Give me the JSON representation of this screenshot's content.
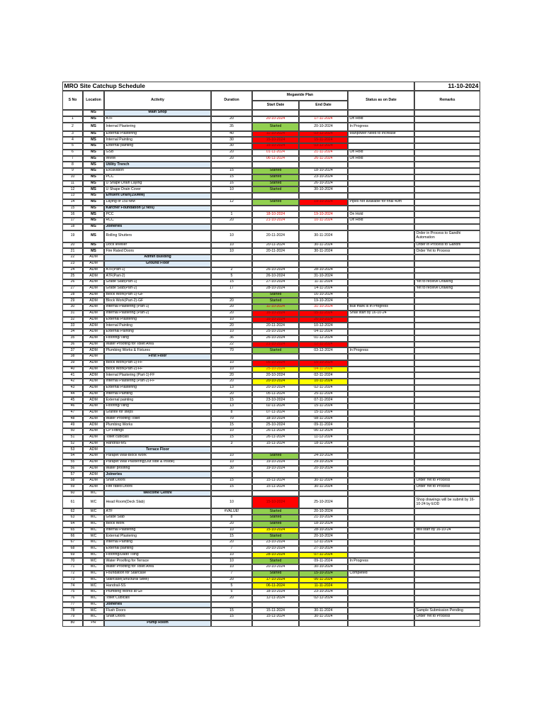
{
  "header": {
    "title": "MRO Site Catchup Schedule",
    "date": "11-10-2024"
  },
  "columns": {
    "sno": "S No",
    "location": "Location",
    "activity": "Activity",
    "duration": "Duration",
    "plan": "Megawide Plan",
    "start": "Start Date",
    "end": "End Date",
    "status": "Status as on Date",
    "remarks": "Remarks"
  },
  "rows": [
    {
      "location": "MS",
      "group": "Main Shop"
    },
    {
      "sno": 1,
      "location": "MS",
      "activity": "ATF",
      "duration": 20,
      "start": "20-10-2024",
      "end": "17-11-2024",
      "red_text": true,
      "status": "On Hold"
    },
    {
      "sno": 2,
      "location": "MS",
      "activity": "Internal Plastering",
      "duration": 35,
      "start": "Started",
      "start_fill": "#92d050",
      "end": "20-10-2024",
      "status": "In Progress"
    },
    {
      "sno": 3,
      "location": "MS",
      "activity": "External Plastering",
      "duration": 40,
      "start": "11-10-2024",
      "start_fill": "#ff0000",
      "end": "03-12-2024",
      "end_fill": "#ff0000",
      "status": "Manpower Need to Increase"
    },
    {
      "sno": 4,
      "location": "MS",
      "activity": "Internal Painting",
      "duration": 30,
      "start": "15-10-2024",
      "start_fill": "#ff0000",
      "end": "15-11-2024",
      "end_fill": "#ff0000"
    },
    {
      "sno": 5,
      "location": "MS",
      "activity": "External painting",
      "duration": 30,
      "start": "15-10-2024",
      "start_fill": "#ff0000",
      "end": "03-12-2024",
      "end_fill": "#ff0000"
    },
    {
      "sno": 6,
      "location": "MS",
      "activity": "GSB",
      "duration": 20,
      "start": "01-11-2024",
      "end": "21-11-2024",
      "red_text": true,
      "status": "On Hold"
    },
    {
      "sno": 7,
      "location": "MS",
      "activity": "WMM",
      "duration": 20,
      "start": "06-11-2024",
      "end": "26-11-2024",
      "red_text": true,
      "status": "On Hold"
    },
    {
      "sno": 8,
      "location": "MS",
      "subgroup": "Utility Trench"
    },
    {
      "sno": 9,
      "location": "MS",
      "activity": "Excavation",
      "duration": 15,
      "start": "Started",
      "start_fill": "#92d050",
      "end": "18-10-2024"
    },
    {
      "sno": 10,
      "location": "MS",
      "activity": "PCC",
      "duration": 15,
      "start": "Started",
      "start_fill": "#92d050",
      "end": "23-10-2024"
    },
    {
      "sno": 11,
      "location": "MS",
      "activity": "U Shape Drain Laying",
      "duration": 16,
      "start": "Started",
      "start_fill": "#92d050",
      "end": "26-10-2024"
    },
    {
      "sno": 12,
      "location": "MS",
      "activity": "U Shape Drain Cover",
      "duration": 10,
      "start": "Started",
      "start_fill": "#92d050",
      "end": "30-10-2024"
    },
    {
      "sno": 13,
      "location": "MS",
      "subgroup": "Effluent Drain(150MM)"
    },
    {
      "sno": 14,
      "location": "MS",
      "activity": "Laying of 150 MM",
      "duration": 12,
      "start": "Started",
      "start_fill": "#92d050",
      "end": "19-10-2024",
      "end_fill": "#ff0000",
      "status": "Pipes not available for final 40m"
    },
    {
      "sno": 15,
      "location": "MS",
      "subgroup": "Karcher Foundation (2 Nos)"
    },
    {
      "sno": 16,
      "location": "MS",
      "activity": "PCC",
      "duration": 1,
      "start": "18-10-2024",
      "end": "19-10-2024",
      "red_text": true,
      "status": "On Hold"
    },
    {
      "sno": 17,
      "location": "MS",
      "activity": "RCC",
      "duration": 20,
      "start": "21-10-2024",
      "end": "10-11-2024",
      "red_text": true,
      "status": "On Hold"
    },
    {
      "sno": 18,
      "location": "MS",
      "subgroup": "Joineries"
    },
    {
      "sno": 19,
      "location": "MS",
      "activity": "Rolling Shutters",
      "duration": 10,
      "start": "20-11-2024",
      "end": "30-11-2024",
      "remarks": "Order in Process to Gandhi Automation"
    },
    {
      "sno": 20,
      "location": "MS",
      "activity": "Dock leveller",
      "duration": 10,
      "start": "20-11-2024",
      "end": "30-11-2024",
      "remarks": "Order in Process to Gandhi"
    },
    {
      "sno": 21,
      "location": "MS",
      "activity": "Fire Rated Doors",
      "duration": 10,
      "start": "20-11-2024",
      "end": "30-11-2024",
      "remarks": "Order Yet to Process"
    },
    {
      "sno": 22,
      "location": "ADM",
      "group": "Admin Building"
    },
    {
      "sno": 23,
      "location": "ADM",
      "group": "Ground Floor"
    },
    {
      "sno": 24,
      "location": "ADM",
      "activity": "ATF(Part-1)",
      "duration": 2,
      "start": "26-10-2024",
      "end": "28-10-2024"
    },
    {
      "sno": 25,
      "location": "ADM",
      "activity": "ATF(Part-2)",
      "duration": 5,
      "start": "26-10-2024",
      "end": "31-10-2024"
    },
    {
      "sno": 26,
      "location": "ADM",
      "activity": "Grade Slab(Part-1)",
      "duration": 15,
      "start": "27-10-2024",
      "end": "11-11-2024",
      "remarks": "Yet to receive Drawing"
    },
    {
      "sno": 27,
      "location": "ADM",
      "activity": "Grade Slab(Part-2)",
      "duration": 17,
      "start": "28-10-2024",
      "end": "14-11-2024",
      "remarks": "Yet to receive Drawing"
    },
    {
      "sno": 28,
      "location": "ADM",
      "activity": "Block Work(Part-1)-GF",
      "start": "Started",
      "start_fill": "#92d050",
      "end": "16-10-2024"
    },
    {
      "sno": 29,
      "location": "ADM",
      "activity": "Block Work(Part-2)-GF",
      "duration": 20,
      "start": "Started",
      "start_fill": "#92d050",
      "end": "19-10-2024"
    },
    {
      "sno": 30,
      "location": "ADM",
      "activity": "Internal Plastering (Part-1)",
      "duration": 20,
      "start": "11-10-2024",
      "start_fill": "#92d050",
      "red_text": true,
      "end": "31-10-2024",
      "status": "Bull mark is in Progress"
    },
    {
      "sno": 31,
      "location": "ADM",
      "activity": "Internal Plastering (Part-2)",
      "duration": 20,
      "start": "16-10-2024",
      "start_fill": "#ff0000",
      "end": "05-11-2024",
      "end_fill": "#ff0000",
      "status": "Shall start by 16-10-24"
    },
    {
      "sno": 32,
      "location": "ADM",
      "activity": "External Plastering",
      "duration": 10,
      "start": "16-10-2024",
      "start_fill": "#ff0000",
      "end": "26-10-2024",
      "end_fill": "#ff0000"
    },
    {
      "sno": 33,
      "location": "ADM",
      "activity": "Internal Painting",
      "duration": 20,
      "start": "20-11-2024",
      "end": "10-12-2024"
    },
    {
      "sno": 34,
      "location": "ADM",
      "activity": "External Painting",
      "duration": 10,
      "start": "25-10-2024",
      "end": "04-11-2024"
    },
    {
      "sno": 35,
      "location": "ADM",
      "activity": "Flooring/Tiling",
      "duration": 36,
      "start": "26-10-2024",
      "end": "01-12-2024"
    },
    {
      "sno": 36,
      "location": "ADM",
      "activity": "Water Proofing for Toilet Area",
      "duration": 22,
      "start": "21-10-2024",
      "start_fill": "#ff0000",
      "end": "12-11-2024",
      "end_fill": "#ff0000"
    },
    {
      "sno": 37,
      "location": "ADM",
      "activity": "Plumbing Works & Fixtures",
      "duration": 70,
      "start": "Started",
      "start_fill": "#92d050",
      "end": "03-12-2024",
      "status": "In Progress"
    },
    {
      "sno": 38,
      "location": "ADM",
      "group": "First Floor"
    },
    {
      "sno": 39,
      "location": "ADM",
      "activity": "Block Work(Part-1)-FF",
      "duration": 10,
      "start": "05-10-2024",
      "start_fill": "#ff0000",
      "end": "15-10-2024",
      "end_fill": "#ff0000"
    },
    {
      "sno": 40,
      "location": "ADM",
      "activity": "Block Work(Part-2)-FF",
      "duration": 10,
      "start": "25-10-2024",
      "start_fill": "#ffff00",
      "end": "04-11-2024",
      "end_fill": "#ffff00",
      "red_text": true
    },
    {
      "sno": 41,
      "location": "ADM",
      "activity": "Internal Plastering (Part-1)-FF",
      "duration": 20,
      "start": "20-10-2024",
      "end": "02-11-2024"
    },
    {
      "sno": 42,
      "location": "ADM",
      "activity": "Internal Plastering (Part-2)-FF",
      "duration": 20,
      "start": "20-10-2024",
      "start_fill": "#ffff00",
      "end": "10-11-2024",
      "end_fill": "#ffff00"
    },
    {
      "sno": 43,
      "location": "ADM",
      "activity": "External Plastering",
      "duration": 13,
      "start": "20-10-2024",
      "end": "02-11-2024"
    },
    {
      "sno": 44,
      "location": "ADM",
      "activity": "Internal Painting",
      "duration": 20,
      "start": "05-11-2024",
      "end": "25-11-2024"
    },
    {
      "sno": 45,
      "location": "ADM",
      "activity": "External painting",
      "duration": 15,
      "start": "23-10-2024",
      "end": "07-11-2024"
    },
    {
      "sno": 46,
      "location": "ADM",
      "activity": "Flooring/Tiling",
      "duration": 13,
      "start": "02-11-2024",
      "end": "15-11-2024"
    },
    {
      "sno": 47,
      "location": "ADM",
      "activity": "Granite for steps",
      "duration": 8,
      "start": "07-11-2024",
      "end": "15-11-2024"
    },
    {
      "sno": 48,
      "location": "ADM",
      "activity": "Water Proofing Toilet",
      "duration": 70,
      "start": "18-10-2024",
      "end": "08-11-2024"
    },
    {
      "sno": 49,
      "location": "ADM",
      "activity": "Plumbing Works",
      "duration": 15,
      "start": "25-10-2024",
      "end": "09-11-2024"
    },
    {
      "sno": 50,
      "location": "ADM",
      "activity": "CP Fittings",
      "duration": 10,
      "start": "26-11-2024",
      "end": "06-12-2024"
    },
    {
      "sno": 51,
      "location": "ADM",
      "activity": "Toilet cubicals",
      "duration": 15,
      "start": "26-11-2024",
      "end": "11-12-2024"
    },
    {
      "sno": 52,
      "location": "ADM",
      "activity": "Handrail-MS",
      "duration": 3,
      "start": "15-11-2024",
      "end": "18-11-2024"
    },
    {
      "sno": 53,
      "location": "ADM",
      "group": "Terrace Floor"
    },
    {
      "sno": 54,
      "location": "ADM",
      "activity": "Parapet Wall-Block Work",
      "duration": 10,
      "start": "Started",
      "start_fill": "#92d050",
      "end": "24-10-2024"
    },
    {
      "sno": 55,
      "location": "ADM",
      "activity": "Parapet Wall Plastering(Out side & Inside)",
      "duration": 10,
      "start": "19-10-2024",
      "end": "29-10-2024"
    },
    {
      "sno": 56,
      "location": "ADM",
      "activity": "Water proofing",
      "duration": 30,
      "start": "19-10-2024",
      "end": "20-10-2024"
    },
    {
      "sno": 57,
      "location": "ADM",
      "subgroup": "Joineries"
    },
    {
      "sno": 58,
      "location": "ADM",
      "activity": "Shaft Doors",
      "duration": 15,
      "start": "15-11-2024",
      "end": "30-11-2024",
      "remarks": "Order Yet to Process"
    },
    {
      "sno": 59,
      "location": "ADM",
      "activity": "Fire rated Doors",
      "duration": 15,
      "start": "15-11-2024",
      "end": "30-11-2024",
      "remarks": "Order Yet to Process"
    },
    {
      "sno": 60,
      "location": "WC",
      "group": "Welcome Centre"
    },
    {
      "sno": 61,
      "location": "WC",
      "activity": "Head Room(Deck Slab)",
      "duration": 10,
      "start": "15-10-2024",
      "start_fill": "#ff0000",
      "end": "25-10-2024",
      "remarks": "Shop drawings will be submit by 16-10-24 by EOD"
    },
    {
      "sno": 62,
      "location": "WC",
      "activity": "ATF",
      "duration": "#VALUE!",
      "start": "Started",
      "start_fill": "#92d050",
      "end": "20-10-2024"
    },
    {
      "sno": 63,
      "location": "WC",
      "activity": "Grade Slab",
      "duration": 8,
      "start": "Started",
      "start_fill": "#92d050",
      "end": "21-10-2024"
    },
    {
      "sno": 64,
      "location": "WC",
      "activity": "Block Work",
      "duration": 20,
      "start": "Started",
      "start_fill": "#92d050",
      "end": "18-10-2024"
    },
    {
      "sno": 65,
      "location": "WC",
      "activity": "Internal Plastering",
      "duration": 10,
      "start": "15-10-2024",
      "start_fill": "#ffff00",
      "end": "28-10-2024",
      "remarks": "Will start by 16-10-24"
    },
    {
      "sno": 66,
      "location": "WC",
      "activity": "External Plastering",
      "duration": 15,
      "start": "Started",
      "start_fill": "#92d050",
      "end": "20-10-2024"
    },
    {
      "sno": 67,
      "location": "WC",
      "activity": "Internal Painting",
      "duration": 20,
      "start": "23-10-2024",
      "end": "12-11-2024"
    },
    {
      "sno": 68,
      "location": "WC",
      "activity": "External painting",
      "duration": 7,
      "start": "20-10-2024",
      "end": "27-10-2024"
    },
    {
      "sno": 69,
      "location": "WC",
      "activity": "Flooring/Dado Tiling",
      "duration": 10,
      "start": "28-10-2024",
      "start_fill": "#ffff00",
      "end": "07-11-2024",
      "end_fill": "#ffff00"
    },
    {
      "sno": 70,
      "location": "WC",
      "activity": "Water Proofing for Terrace",
      "duration": 10,
      "start": "Started",
      "start_fill": "#92d050",
      "end": "09-11-2024",
      "status": "In Progress"
    },
    {
      "sno": 71,
      "location": "WC",
      "activity": "Water Proofing for Toilet Area",
      "duration": 10,
      "start": "20-10-2024",
      "end": "30-10-2024"
    },
    {
      "sno": 72,
      "location": "WC",
      "activity": "Foundation for Staircase",
      "duration": 7,
      "start": "Started",
      "start_fill": "#92d050",
      "end": "15-10-2024",
      "end_fill": "#92d050",
      "status": "Completed"
    },
    {
      "sno": 73,
      "location": "WC",
      "activity": "Staircase(Structural Steel)",
      "duration": 20,
      "start": "17-10-2024",
      "start_fill": "#ffff00",
      "end": "06-11-2024",
      "end_fill": "#ffff00"
    },
    {
      "sno": 74,
      "location": "WC",
      "activity": "Handrail-SS",
      "duration": 5,
      "start": "06-11-2024",
      "start_fill": "#ffff00",
      "end": "11-11-2024",
      "end_fill": "#ffff00"
    },
    {
      "sno": 75,
      "location": "WC",
      "activity": "Plumbing Works at GF",
      "duration": 5,
      "start": "18-10-2024",
      "end": "23-10-2024"
    },
    {
      "sno": 76,
      "location": "WC",
      "activity": "Toilet Cubicals",
      "duration": 20,
      "start": "12-11-2024",
      "end": "02-12-2024"
    },
    {
      "sno": 77,
      "location": "WC",
      "subgroup": "Joineries"
    },
    {
      "sno": 78,
      "location": "WC",
      "activity": "Flush Doors",
      "duration": 15,
      "start": "15-11-2024",
      "end": "30-11-2024",
      "remarks": "Sample Submission Pending"
    },
    {
      "sno": 79,
      "location": "WC",
      "activity": "Shaft Doors",
      "duration": 15,
      "start": "15-11-2024",
      "end": "30-11-2024",
      "remarks": "Order Yet to Process"
    },
    {
      "sno": 80,
      "location": "PR",
      "group": "Pump Room"
    }
  ]
}
